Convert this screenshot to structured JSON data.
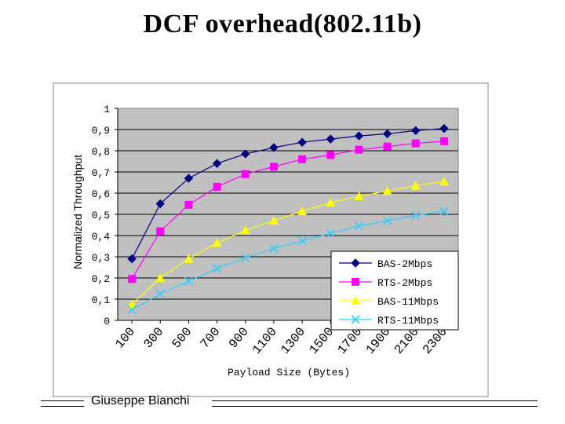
{
  "slide": {
    "title": "DCF overhead(802.11b)",
    "footer_author": "Giuseppe Bianchi"
  },
  "chart_data": {
    "type": "line",
    "title": "",
    "xlabel": "Payload Size (Bytes)",
    "ylabel": "Normalized Throughput",
    "x": [
      100,
      300,
      500,
      700,
      900,
      1100,
      1300,
      1500,
      1700,
      1900,
      2100,
      2300
    ],
    "x_tick_labels": [
      "100",
      "300",
      "500",
      "700",
      "900",
      "1100",
      "1300",
      "1500",
      "1700",
      "1900",
      "2100",
      "2300"
    ],
    "ylim": [
      0,
      1
    ],
    "y_ticks": [
      0,
      0.1,
      0.2,
      0.3,
      0.4,
      0.5,
      0.6,
      0.7,
      0.8,
      0.9,
      1
    ],
    "y_tick_labels": [
      "0",
      "0,1",
      "0,2",
      "0,3",
      "0,4",
      "0,5",
      "0,6",
      "0,7",
      "0,8",
      "0,9",
      "1"
    ],
    "grid": true,
    "plot_background": "#c0c0c0",
    "legend_position": "bottom-right",
    "series": [
      {
        "name": "BAS-2Mbps",
        "color": "#000080",
        "marker": "diamond",
        "values": [
          0.29,
          0.55,
          0.67,
          0.74,
          0.785,
          0.815,
          0.84,
          0.855,
          0.87,
          0.88,
          0.895,
          0.905
        ]
      },
      {
        "name": "RTS-2Mbps",
        "color": "#ff00ff",
        "marker": "square",
        "values": [
          0.195,
          0.42,
          0.545,
          0.63,
          0.69,
          0.725,
          0.76,
          0.78,
          0.805,
          0.82,
          0.835,
          0.845
        ]
      },
      {
        "name": "BAS-11Mbps",
        "color": "#ffff00",
        "marker": "triangle",
        "values": [
          0.075,
          0.2,
          0.29,
          0.365,
          0.425,
          0.47,
          0.515,
          0.555,
          0.585,
          0.61,
          0.635,
          0.655
        ]
      },
      {
        "name": "RTS-11Mbps",
        "color": "#33ccff",
        "marker": "x",
        "values": [
          0.05,
          0.125,
          0.185,
          0.245,
          0.295,
          0.34,
          0.375,
          0.41,
          0.445,
          0.47,
          0.495,
          0.515
        ]
      }
    ]
  }
}
